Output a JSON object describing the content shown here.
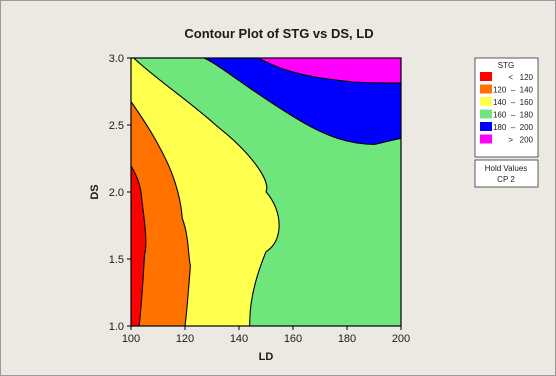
{
  "chart_data": {
    "type": "contour",
    "title": "Contour Plot of STG vs DS, LD",
    "xlabel": "LD",
    "ylabel": "DS",
    "xlim": [
      100,
      200
    ],
    "ylim": [
      1.0,
      3.0
    ],
    "x_ticks": [
      "100",
      "120",
      "140",
      "160",
      "180",
      "200"
    ],
    "y_ticks": [
      "1.0",
      "1.5",
      "2.0",
      "2.5",
      "3.0"
    ],
    "grid": false,
    "legend_position": "right",
    "legend": {
      "title": "STG",
      "entries": [
        {
          "label": "<   120",
          "color": "#ff0000",
          "range": [
            null,
            120
          ]
        },
        {
          "label": "120  –  140",
          "color": "#ff7200",
          "range": [
            120,
            140
          ]
        },
        {
          "label": "140  –  160",
          "color": "#ffff4d",
          "range": [
            140,
            160
          ]
        },
        {
          "label": "160  –  180",
          "color": "#6fe67c",
          "range": [
            160,
            180
          ]
        },
        {
          "label": "180  –  200",
          "color": "#0000ff",
          "range": [
            180,
            200
          ]
        },
        {
          "label": ">   200",
          "color": "#ff00ff",
          "range": [
            200,
            null
          ]
        }
      ]
    },
    "hold_values": {
      "title": "Hold Values",
      "text": "CP  2"
    },
    "contour_lines": [
      {
        "level": 120,
        "points": [
          [
            100,
            2.21
          ],
          [
            104,
            1.96
          ],
          [
            106,
            1.55
          ],
          [
            104,
            1.2
          ],
          [
            103,
            1.0
          ]
        ]
      },
      {
        "level": 140,
        "points": [
          [
            100,
            2.69
          ],
          [
            110,
            2.3
          ],
          [
            119,
            1.75
          ],
          [
            122,
            1.4
          ],
          [
            120,
            1.0
          ]
        ]
      },
      {
        "level": 160,
        "points": [
          [
            101,
            3.0
          ],
          [
            115,
            2.67
          ],
          [
            132,
            2.3
          ],
          [
            150,
            1.82
          ],
          [
            155,
            1.6
          ],
          [
            150,
            1.32
          ],
          [
            144,
            1.0
          ]
        ]
      },
      {
        "level": 180,
        "points": [
          [
            127,
            3.0
          ],
          [
            138,
            2.86
          ],
          [
            160,
            2.52
          ],
          [
            178,
            2.3
          ],
          [
            190,
            2.27
          ],
          [
            200,
            2.3
          ]
        ]
      },
      {
        "level": 200,
        "points": [
          [
            153,
            3.0
          ],
          [
            166,
            2.88
          ],
          [
            182,
            2.77
          ],
          [
            200,
            2.75
          ]
        ]
      }
    ]
  }
}
